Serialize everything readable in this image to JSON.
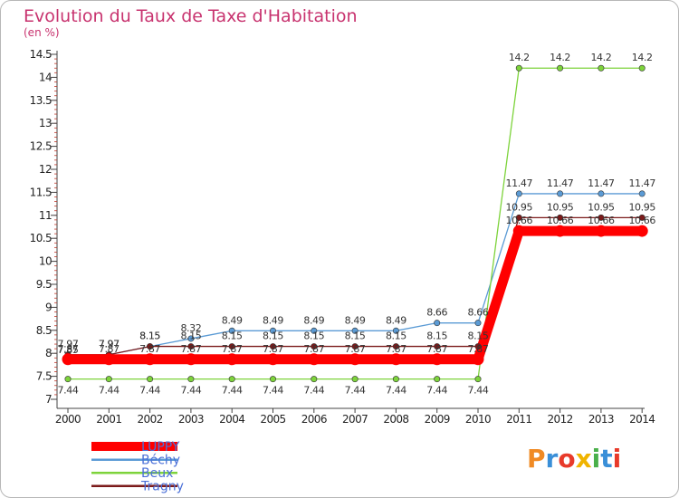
{
  "chart_data": {
    "type": "line",
    "title": "Evolution du Taux de Taxe d'Habitation",
    "subtitle": "(en %)",
    "x": [
      "2000",
      "2001",
      "2002",
      "2003",
      "2004",
      "2005",
      "2006",
      "2007",
      "2008",
      "2009",
      "2010",
      "2011",
      "2012",
      "2013",
      "2014"
    ],
    "ylim": [
      7,
      14.5
    ],
    "yticks": [
      "7",
      "7.5",
      "8",
      "8.5",
      "9",
      "9.5",
      "10",
      "10.5",
      "11",
      "11.5",
      "12",
      "12.5",
      "13",
      "13.5",
      "14",
      "14.5"
    ],
    "grid": false,
    "legend_position": "bottom-left",
    "series": [
      {
        "name": "LUPPY",
        "color": "#ff0000",
        "values": [
          7.87,
          7.87,
          7.87,
          7.87,
          7.87,
          7.87,
          7.87,
          7.87,
          7.87,
          7.87,
          7.87,
          10.66,
          10.66,
          10.66,
          10.66
        ],
        "labels": [
          "7.87",
          "7.87",
          "7.87",
          "7.87",
          "7.87",
          "7.87",
          "7.87",
          "7.87",
          "7.87",
          "7.87",
          "7.87",
          "10.66",
          "10.66",
          "10.66",
          "10.66"
        ]
      },
      {
        "name": "Béchy",
        "color": "#5b9bd5",
        "values": [
          7.85,
          7.97,
          8.15,
          8.32,
          8.49,
          8.49,
          8.49,
          8.49,
          8.49,
          8.66,
          8.66,
          11.47,
          11.47,
          11.47,
          11.47
        ],
        "labels": [
          "7.85",
          "7.97",
          "8.15",
          "8.32",
          "8.49",
          "8.49",
          "8.49",
          "8.49",
          "8.49",
          "8.66",
          "8.66",
          "11.47",
          "11.47",
          "11.47",
          "11.47"
        ]
      },
      {
        "name": "Beux",
        "color": "#7dd33b",
        "values": [
          7.44,
          7.44,
          7.44,
          7.44,
          7.44,
          7.44,
          7.44,
          7.44,
          7.44,
          7.44,
          7.44,
          14.2,
          14.2,
          14.2,
          14.2
        ],
        "labels": [
          "7.44",
          "7.44",
          "7.44",
          "7.44",
          "7.44",
          "7.44",
          "7.44",
          "7.44",
          "7.44",
          "7.44",
          "7.44",
          "14.2",
          "14.2",
          "14.2",
          "14.2"
        ]
      },
      {
        "name": "Tragny",
        "color": "#7b1a1a",
        "values": [
          7.97,
          7.97,
          8.15,
          8.15,
          8.15,
          8.15,
          8.15,
          8.15,
          8.15,
          8.15,
          8.15,
          10.95,
          10.95,
          10.95,
          10.95
        ],
        "labels": [
          "7.97",
          "7.97",
          "8.15",
          "8.15",
          "8.15",
          "8.15",
          "8.15",
          "8.15",
          "8.15",
          "8.15",
          "8.15",
          "10.95",
          "10.95",
          "10.95",
          "10.95"
        ]
      }
    ]
  },
  "logo": {
    "text": "Proxiti",
    "colors": [
      "#f08a24",
      "#3a8fd8",
      "#e83a2a",
      "#f0b400",
      "#4ab04a",
      "#3a8fd8",
      "#e83a2a"
    ]
  }
}
